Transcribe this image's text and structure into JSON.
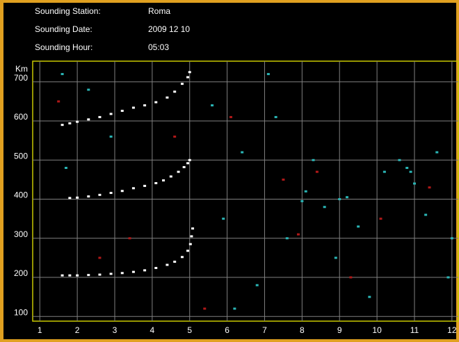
{
  "chart_data": {
    "type": "scatter",
    "info": [
      {
        "label": "Sounding Station:",
        "value": "Roma"
      },
      {
        "label": "Sounding Date:",
        "value": "2009 12 10"
      },
      {
        "label": "Sounding Hour:",
        "value": "05:03"
      }
    ],
    "y_label": "Km",
    "xlim": [
      0.81,
      12.17
    ],
    "ylim": [
      88,
      753
    ],
    "xticks": [
      1,
      2,
      3,
      4,
      5,
      6,
      7,
      8,
      9,
      10,
      11,
      12
    ],
    "yticks": [
      100,
      200,
      300,
      400,
      500,
      600,
      700
    ],
    "grid": true,
    "series": [
      {
        "color": "#ffffff",
        "x": [
          1.6,
          1.8,
          2.0,
          2.3,
          2.6,
          2.9,
          3.2,
          3.5,
          3.8,
          4.1,
          4.4,
          4.6,
          4.8,
          4.95,
          5.02,
          5.05,
          5.08
        ],
        "values": [
          205,
          205,
          205,
          206,
          207,
          209,
          211,
          214,
          218,
          224,
          232,
          240,
          252,
          268,
          285,
          305,
          325
        ]
      },
      {
        "color": "#ffffff",
        "x": [
          1.8,
          2.0,
          2.3,
          2.6,
          2.9,
          3.2,
          3.5,
          3.8,
          4.1,
          4.3,
          4.5,
          4.7,
          4.85,
          4.95,
          5.0
        ],
        "values": [
          403,
          404,
          407,
          411,
          416,
          421,
          428,
          434,
          441,
          448,
          458,
          470,
          482,
          492,
          500
        ]
      },
      {
        "color": "#ffffff",
        "x": [
          1.6,
          1.8,
          2.0,
          2.3,
          2.6,
          2.9,
          3.2,
          3.5,
          3.8,
          4.1,
          4.4,
          4.6,
          4.8,
          4.95,
          5.0
        ],
        "values": [
          590,
          594,
          598,
          604,
          610,
          618,
          626,
          634,
          640,
          648,
          660,
          675,
          695,
          712,
          725
        ]
      },
      {
        "color": "#2ab5b5",
        "x": [
          1.6,
          1.7,
          2.3,
          2.9,
          5.6,
          5.9,
          6.4,
          6.8,
          7.3,
          7.6,
          8.1,
          8.3,
          8.6,
          8.9,
          9.2,
          9.5,
          9.8,
          10.2,
          10.6,
          10.8,
          11.0,
          11.3,
          11.6,
          11.9,
          8.0,
          9.0,
          10.9,
          6.2,
          7.1,
          12.0
        ],
        "values": [
          720,
          480,
          680,
          560,
          640,
          350,
          520,
          180,
          610,
          300,
          420,
          500,
          380,
          250,
          405,
          330,
          150,
          470,
          500,
          480,
          440,
          360,
          520,
          200,
          395,
          400,
          470,
          120,
          720,
          300
        ]
      },
      {
        "color": "#b01818",
        "x": [
          1.5,
          2.6,
          3.4,
          4.6,
          6.1,
          7.5,
          8.4,
          9.3,
          10.1,
          11.4,
          5.4,
          7.9
        ],
        "values": [
          650,
          250,
          300,
          560,
          610,
          450,
          470,
          200,
          350,
          430,
          120,
          310
        ]
      }
    ]
  }
}
